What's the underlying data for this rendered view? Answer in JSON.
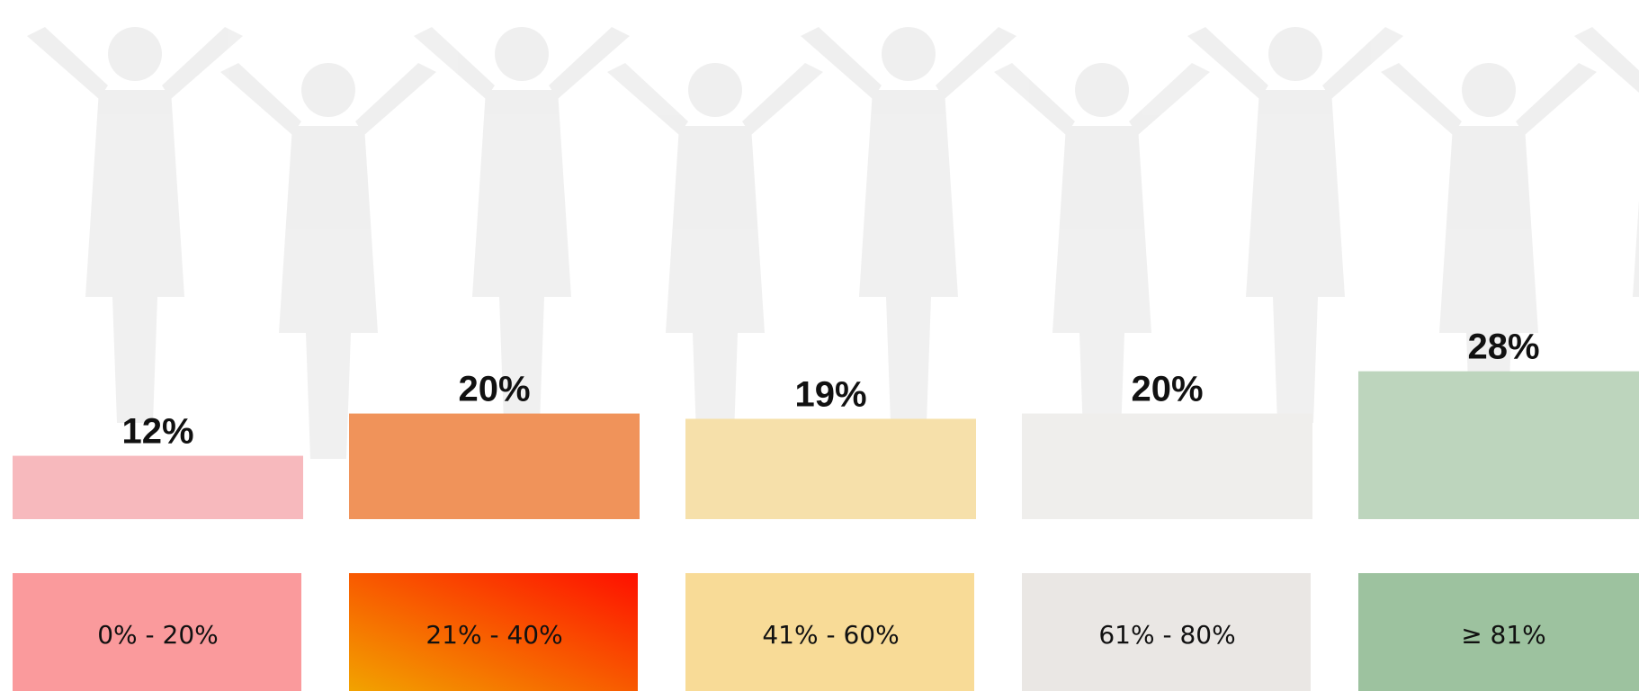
{
  "chart_data": {
    "type": "bar",
    "categories": [
      "0% - 20%",
      "21% - 40%",
      "41% - 60%",
      "61% - 80%",
      "≥ 81%"
    ],
    "values": [
      12,
      20,
      19,
      20,
      28
    ],
    "value_labels": [
      "12%",
      "20%",
      "19%",
      "20%",
      "28%"
    ],
    "colors": [
      "#f7b9bd",
      "#f0935a",
      "#f6e0aa",
      "#efeeec",
      "#bdd5bd"
    ],
    "category_colors": [
      [
        "#fa9a9c"
      ],
      [
        "#f2a300",
        "#fe1000"
      ],
      [
        "#f8db97"
      ],
      [
        "#eae7e4"
      ],
      [
        "#9dc29f"
      ]
    ]
  }
}
